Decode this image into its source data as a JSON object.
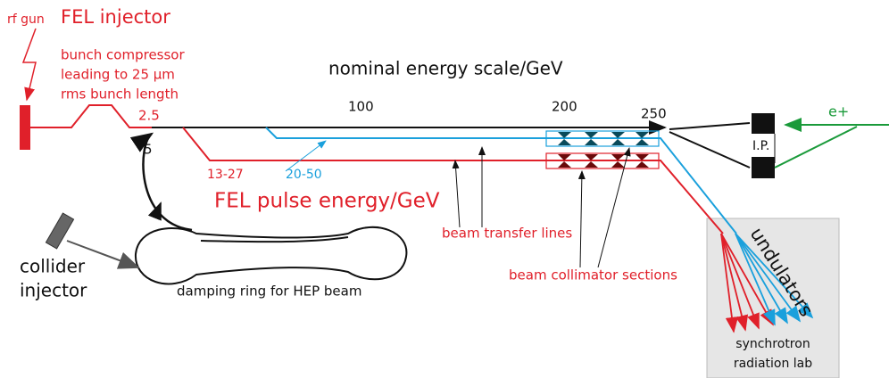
{
  "header": {
    "rf_gun": "rf gun",
    "title": "FEL injector"
  },
  "compressor": [
    "bunch compressor",
    "leading to 25 µm",
    "rms bunch length"
  ],
  "energy_scale": {
    "label": "nominal energy scale/GeV",
    "marks": [
      "2.5",
      "5",
      "100",
      "200",
      "250"
    ]
  },
  "fel": {
    "ranges": [
      "13-27",
      "20-50"
    ],
    "label": "FEL pulse energy/GeV"
  },
  "labels": {
    "transfer": "beam transfer lines",
    "collimator": "beam collimator sections",
    "damping": "damping ring for HEP beam",
    "ip": "I.P.",
    "positron": "e+",
    "undulators": "undulators"
  },
  "collider": [
    "collider",
    "injector"
  ],
  "lab": [
    "synchrotron",
    "radiation lab"
  ]
}
